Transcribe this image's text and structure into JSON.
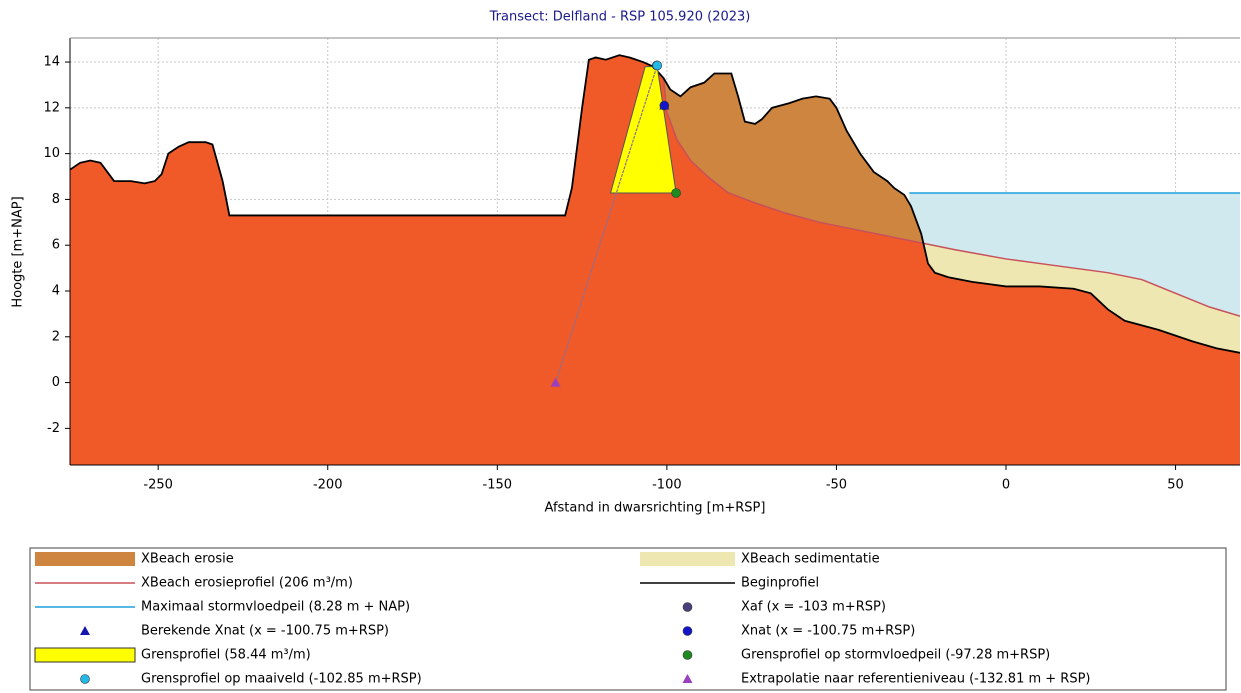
{
  "chart_data": {
    "type": "area",
    "title": "Transect: Delfland - RSP 105.920 (2023)",
    "xlabel": "Afstand in dwarsrichting [m+RSP]",
    "ylabel": "Hoogte [m+NAP]",
    "xlim": [
      -276,
      69
    ],
    "ylim": [
      -3.6,
      15.05
    ],
    "xticks": [
      -250,
      -200,
      -150,
      -100,
      -50,
      0,
      50
    ],
    "yticks": [
      -2,
      0,
      2,
      4,
      6,
      8,
      10,
      12,
      14
    ],
    "grid": true,
    "series": [
      {
        "name": "XBeach erosie",
        "style": "area",
        "color": "#cd853f"
      },
      {
        "name": "XBeach sedimentatie",
        "style": "area",
        "color": "#efe7b1"
      },
      {
        "name": "XBeach erosieprofiel (206 m³/m)",
        "style": "line",
        "color": "#c8505a",
        "x": [
          -101,
          -100,
          -97,
          -93,
          -88,
          -82,
          -75,
          -65,
          -55,
          -45,
          -35,
          -25,
          -15,
          0,
          15,
          30,
          40,
          50,
          60,
          69
        ],
        "values": [
          13.3,
          11.8,
          10.6,
          9.7,
          9.0,
          8.3,
          7.9,
          7.4,
          7.0,
          6.7,
          6.4,
          6.1,
          5.8,
          5.4,
          5.1,
          4.8,
          4.5,
          3.9,
          3.3,
          2.9
        ]
      },
      {
        "name": "Beginprofiel",
        "style": "line",
        "color": "#000000",
        "fill": "#f05a28",
        "x": [
          -276,
          -273,
          -270,
          -267,
          -265,
          -263,
          -258,
          -254,
          -251,
          -249,
          -247,
          -244,
          -241,
          -236,
          -234,
          -231,
          -229,
          -130,
          -128,
          -125,
          -123,
          -121,
          -118,
          -114,
          -111,
          -107,
          -104,
          -101,
          -99,
          -96,
          -93,
          -89,
          -86,
          -81,
          -79,
          -77,
          -74,
          -72,
          -69,
          -64,
          -60,
          -56,
          -52,
          -50,
          -47,
          -43,
          -39,
          -35,
          -33,
          -30,
          -28,
          -25,
          -23,
          -21,
          -17,
          -10,
          -5,
          0,
          10,
          20,
          25,
          30,
          35,
          45,
          55,
          62,
          69
        ],
        "values": [
          9.3,
          9.6,
          9.7,
          9.6,
          9.2,
          8.8,
          8.8,
          8.7,
          8.8,
          9.1,
          10.0,
          10.3,
          10.5,
          10.5,
          10.4,
          8.8,
          7.3,
          7.3,
          8.5,
          12.0,
          14.1,
          14.2,
          14.1,
          14.3,
          14.2,
          14.0,
          13.8,
          13.3,
          12.8,
          12.5,
          12.9,
          13.1,
          13.5,
          13.5,
          12.5,
          11.4,
          11.3,
          11.5,
          12.0,
          12.2,
          12.4,
          12.5,
          12.4,
          12.0,
          11.0,
          10.0,
          9.2,
          8.8,
          8.5,
          8.2,
          7.7,
          6.5,
          5.2,
          4.8,
          4.6,
          4.4,
          4.3,
          4.2,
          4.2,
          4.1,
          3.9,
          3.2,
          2.7,
          2.3,
          1.8,
          1.5,
          1.3
        ]
      },
      {
        "name": "Maximaal stormvloedpeil (8.28 m + NAP)",
        "style": "line",
        "color": "#1ea0dc",
        "fill": "#cfe9ef",
        "x": [
          -28.5,
          69
        ],
        "values": [
          8.28,
          8.28
        ]
      },
      {
        "name": "Xaf (x =  -103 m+RSP)",
        "style": "circle",
        "color": "#4a3f7a",
        "x": [
          -103
        ],
        "values": [
          13.85
        ]
      },
      {
        "name": "Berekende Xnat (x =  -100.75 m+RSP)",
        "style": "triangle",
        "color": "#1515b0",
        "x": [
          -100.75
        ],
        "values": [
          12.1
        ]
      },
      {
        "name": "Xnat (x =  -100.75 m+RSP)",
        "style": "circle",
        "color": "#1515c8",
        "x": [
          -100.75
        ],
        "values": [
          12.1
        ]
      },
      {
        "name": "Grensprofiel (58.44 m³/m)",
        "style": "polygon",
        "color": "#ffff00",
        "x": [
          -116.6,
          -106.4,
          -102.85,
          -97.28
        ],
        "values": [
          8.28,
          13.8,
          13.8,
          8.28
        ]
      },
      {
        "name": "Grensprofiel op stormvloedpeil (-97.28 m+RSP)",
        "style": "circle",
        "color": "#1f8a1f",
        "x": [
          -97.28
        ],
        "values": [
          8.28
        ]
      },
      {
        "name": "Grensprofiel op maaiveld (-102.85 m+RSP)",
        "style": "circle",
        "color": "#22b8e8",
        "x": [
          -102.85
        ],
        "values": [
          13.85
        ]
      },
      {
        "name": "Extrapolatie naar referentieniveau (-132.81 m + RSP)",
        "style": "triangle",
        "color": "#9a3fc0",
        "x": [
          -132.81
        ],
        "values": [
          0
        ]
      }
    ]
  }
}
